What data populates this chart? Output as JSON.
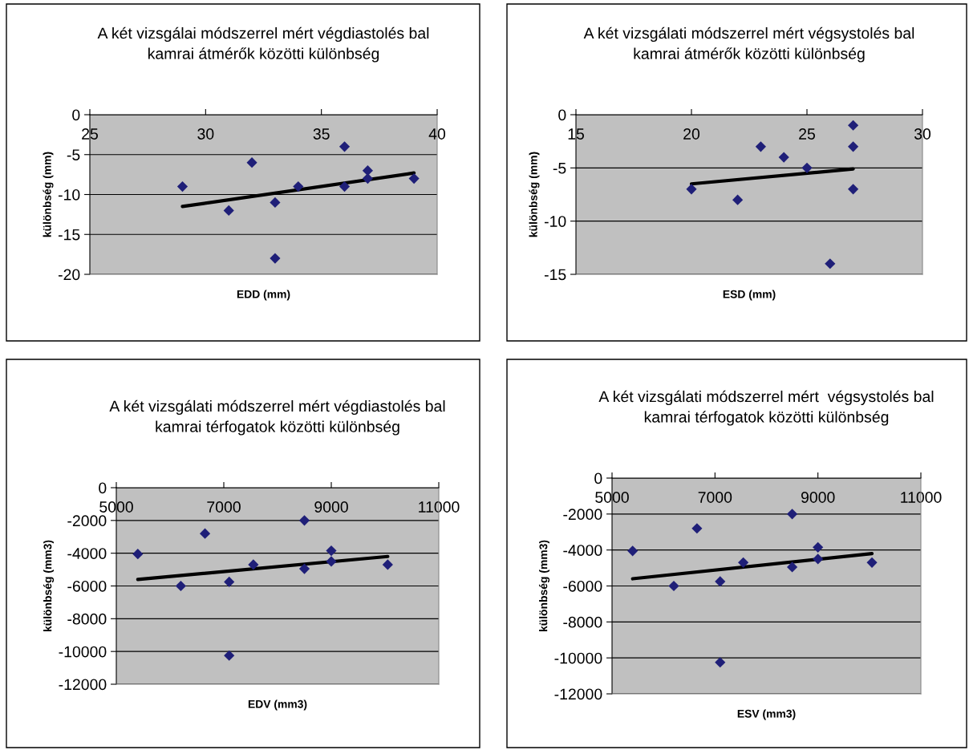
{
  "chart_data": [
    {
      "type": "scatter",
      "title": "A két vizsgálai módszerrel mért végdiastolés bal\nkamrai átmérők közötti különbség",
      "xlabel": "EDD (mm)",
      "ylabel": "különbség (mm)",
      "xlim": [
        25,
        40
      ],
      "xticks": [
        25,
        30,
        35,
        40
      ],
      "ylim": [
        -20,
        0
      ],
      "yticks": [
        -20,
        -15,
        -10,
        -5,
        0
      ],
      "grid": "y",
      "series": [
        {
          "marker": "diamond",
          "color": "#1f1f78",
          "x": [
            29,
            31,
            32,
            33,
            33,
            34,
            36,
            36,
            37,
            37,
            39
          ],
          "values": [
            -9,
            -12,
            -6,
            -11,
            -18,
            -9,
            -4,
            -9,
            -7,
            -8,
            -8
          ]
        },
        {
          "type": "line",
          "color": "#000000",
          "x": [
            29,
            39
          ],
          "values": [
            -11.5,
            -7.3
          ]
        }
      ]
    },
    {
      "type": "scatter",
      "title": "A két vizsgálati módszerrel mért végsystolés bal\nkamrai átmérők közötti különbség",
      "xlabel": "ESD (mm)",
      "ylabel": "különbség (mm)",
      "xlim": [
        15,
        30
      ],
      "xticks": [
        15,
        20,
        25,
        30
      ],
      "ylim": [
        -15,
        0
      ],
      "yticks": [
        -15,
        -10,
        -5,
        0
      ],
      "grid": "y",
      "series": [
        {
          "marker": "diamond",
          "color": "#1f1f78",
          "x": [
            20,
            22,
            23,
            24,
            25,
            26,
            27,
            27,
            27
          ],
          "values": [
            -7,
            -8,
            -3,
            -4,
            -5,
            -14,
            -1,
            -3,
            -7
          ]
        },
        {
          "type": "line",
          "color": "#000000",
          "x": [
            20,
            27
          ],
          "values": [
            -6.5,
            -5.1
          ]
        }
      ]
    },
    {
      "type": "scatter",
      "title": "A két vizsgálati módszerrel mért végdiastolés bal\nkamrai térfogatok közötti különbség",
      "xlabel": "EDV (mm3)",
      "ylabel": "különbség (mm3)",
      "xlim": [
        5000,
        11000
      ],
      "xticks": [
        5000,
        7000,
        9000,
        11000
      ],
      "ylim": [
        -12000,
        0
      ],
      "yticks": [
        -12000,
        -10000,
        -8000,
        -6000,
        -4000,
        -2000,
        0
      ],
      "grid": "y",
      "series": [
        {
          "marker": "diamond",
          "color": "#1f1f78",
          "x": [
            5400,
            6200,
            6650,
            7100,
            7100,
            7550,
            8500,
            8500,
            9000,
            9000,
            10050
          ],
          "values": [
            -4050,
            -6000,
            -2800,
            -5750,
            -10250,
            -4700,
            -2000,
            -4950,
            -3850,
            -4500,
            -4700
          ]
        },
        {
          "type": "line",
          "color": "#000000",
          "x": [
            5400,
            10050
          ],
          "values": [
            -5600,
            -4200
          ]
        }
      ]
    },
    {
      "type": "scatter",
      "title": "A két vizsgálati módszerrel mért  végsystolés bal\nkamrai térfogatok közötti különbség",
      "xlabel": "ESV (mm3)",
      "ylabel": "különbség (mm3)",
      "xlim": [
        5000,
        11000
      ],
      "xticks": [
        5000,
        7000,
        9000,
        11000
      ],
      "ylim": [
        -12000,
        0
      ],
      "yticks": [
        -12000,
        -10000,
        -8000,
        -6000,
        -4000,
        -2000,
        0
      ],
      "grid": "y",
      "series": [
        {
          "marker": "diamond",
          "color": "#1f1f78",
          "x": [
            5400,
            6200,
            6650,
            7100,
            7100,
            7550,
            8500,
            8500,
            9000,
            9000,
            10050
          ],
          "values": [
            -4050,
            -6000,
            -2800,
            -5750,
            -10250,
            -4700,
            -2000,
            -4950,
            -3850,
            -4500,
            -4700
          ]
        },
        {
          "type": "line",
          "color": "#000000",
          "x": [
            5400,
            10050
          ],
          "values": [
            -5600,
            -4200
          ]
        }
      ]
    }
  ]
}
